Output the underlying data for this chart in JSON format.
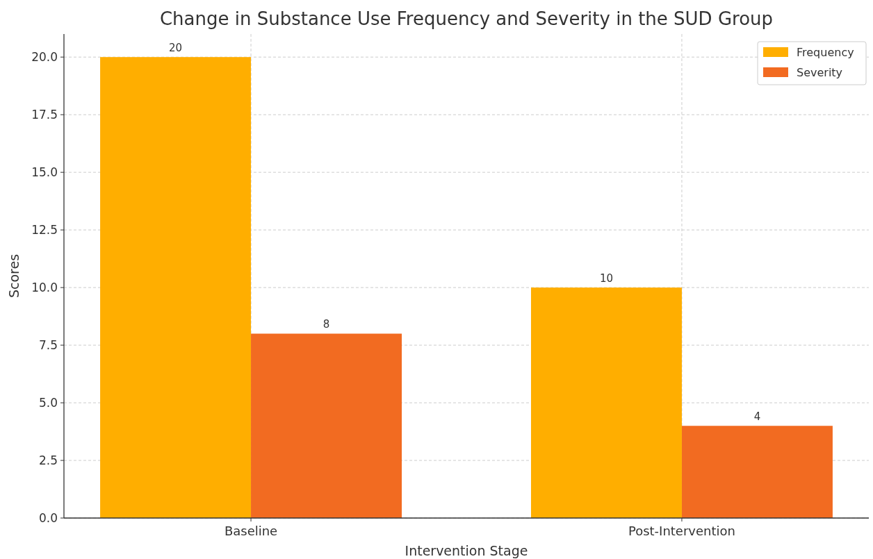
{
  "chart_data": {
    "type": "bar",
    "title": "Change in Substance Use Frequency and Severity in the SUD Group",
    "xlabel": "Intervention Stage",
    "ylabel": "Scores",
    "categories": [
      "Baseline",
      "Post-Intervention"
    ],
    "series": [
      {
        "name": "Frequency",
        "color": "#ffae00",
        "values": [
          20,
          10
        ]
      },
      {
        "name": "Severity",
        "color": "#f26b21",
        "values": [
          8,
          4
        ]
      }
    ],
    "ylim": [
      0,
      21
    ],
    "yticks": [
      {
        "value": 0,
        "label": "0.0"
      },
      {
        "value": 2.5,
        "label": "2.5"
      },
      {
        "value": 5,
        "label": "5.0"
      },
      {
        "value": 7.5,
        "label": "7.5"
      },
      {
        "value": 10,
        "label": "10.0"
      },
      {
        "value": 12.5,
        "label": "12.5"
      },
      {
        "value": 15,
        "label": "15.0"
      },
      {
        "value": 17.5,
        "label": "17.5"
      },
      {
        "value": 20,
        "label": "20.0"
      }
    ],
    "grid": true,
    "legend": "top right",
    "data_labels": true
  }
}
